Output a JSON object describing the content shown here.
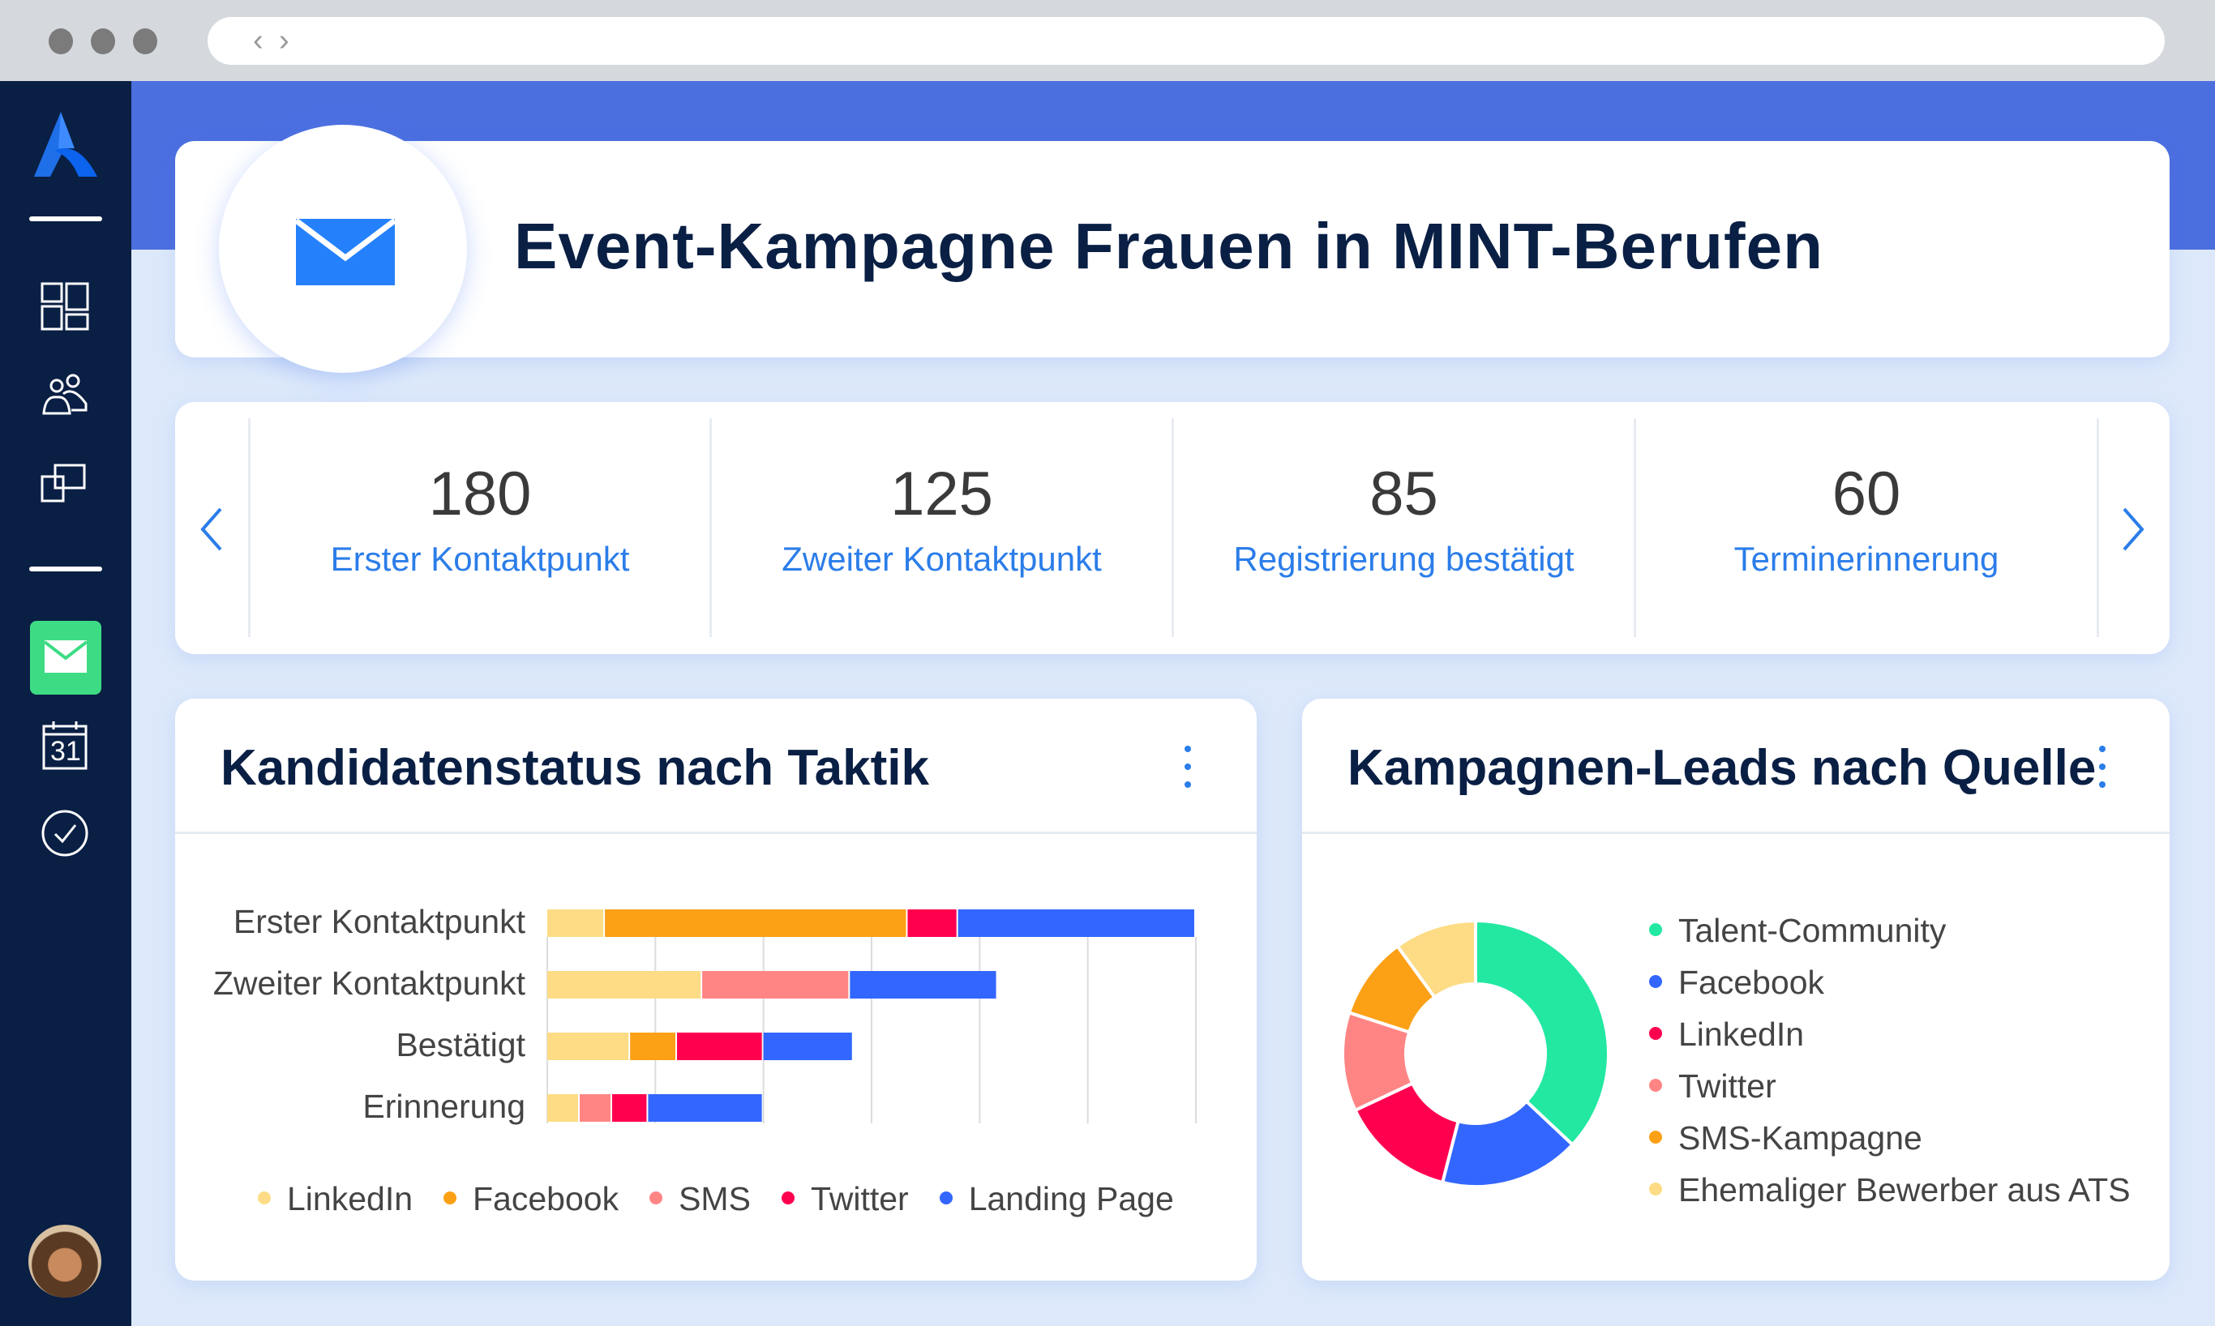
{
  "browser": {
    "back": "‹",
    "forward": "›"
  },
  "sidebar": {
    "items": [
      {
        "name": "dashboard"
      },
      {
        "name": "people"
      },
      {
        "name": "pages"
      },
      {
        "name": "campaigns",
        "active": true
      },
      {
        "name": "calendar",
        "label": "31"
      },
      {
        "name": "tasks"
      }
    ]
  },
  "header": {
    "title": "Event-Kampagne Frauen in MINT-Berufen"
  },
  "stats": [
    {
      "value": "180",
      "label": "Erster Kontaktpunkt"
    },
    {
      "value": "125",
      "label": "Zweiter Kontaktpunkt"
    },
    {
      "value": "85",
      "label": "Registrierung bestätigt"
    },
    {
      "value": "60",
      "label": "Terminerinnerung"
    }
  ],
  "colors": {
    "accent": "#2b7de9",
    "sidebar": "#0a1f44",
    "band": "#4c6fe0",
    "active": "#3ddc84"
  },
  "chart_data": [
    {
      "type": "bar",
      "orientation": "horizontal",
      "stacked": true,
      "title": "Kandidatenstatus nach Taktik",
      "categories": [
        "Erster Kontaktpunkt",
        "Zweiter Kontaktpunkt",
        "Bestätigt",
        "Erinnerung"
      ],
      "xlim": [
        0,
        180
      ],
      "grid": true,
      "legend": "bottom",
      "series": [
        {
          "name": "LinkedIn",
          "color": "#fddc85",
          "values": [
            16,
            43,
            23,
            9
          ]
        },
        {
          "name": "Facebook",
          "color": "#fca016",
          "values": [
            84,
            0,
            13,
            0
          ]
        },
        {
          "name": "SMS",
          "color": "#ff8585",
          "values": [
            0,
            41,
            0,
            9
          ]
        },
        {
          "name": "Twitter",
          "color": "#ff004f",
          "values": [
            14,
            0,
            24,
            10
          ]
        },
        {
          "name": "Landing Page",
          "color": "#3366ff",
          "values": [
            66,
            41,
            25,
            32
          ]
        }
      ]
    },
    {
      "type": "pie",
      "donut": true,
      "title": "Kampagnen-Leads nach Quelle",
      "legend": "right",
      "slices": [
        {
          "name": "Talent-Community",
          "color": "#22e8a2",
          "value": 37
        },
        {
          "name": "Facebook",
          "color": "#3366ff",
          "value": 17
        },
        {
          "name": "LinkedIn",
          "color": "#ff004f",
          "value": 14
        },
        {
          "name": "Twitter",
          "color": "#ff8585",
          "value": 12
        },
        {
          "name": "SMS-Kampagne",
          "color": "#fca016",
          "value": 10
        },
        {
          "name": "Ehemaliger Bewerber aus ATS",
          "color": "#fddc85",
          "value": 10
        }
      ]
    }
  ]
}
